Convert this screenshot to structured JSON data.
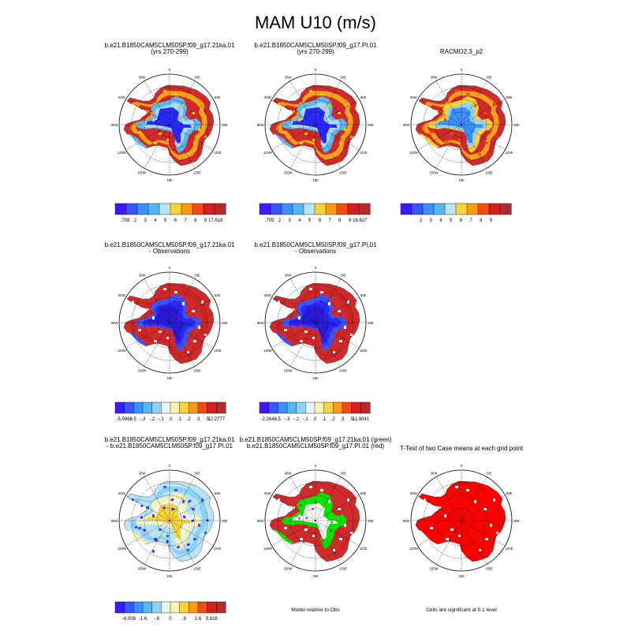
{
  "title": "MAM U10 (m/s)",
  "colors": {
    "ice_core_blue": "#2a2aff",
    "ocean_red": "#d12a2a",
    "sig_red": "#ff0000",
    "green": "#00e600"
  },
  "lon_labels": [
    "0",
    "30E",
    "60E",
    "90E",
    "120E",
    "150E",
    "180",
    "150W",
    "120W",
    "90W",
    "60W",
    "30W"
  ],
  "panels": [
    {
      "id": "p1",
      "title": [
        "b.e21.B1850CAM5CLM50SP.f09_g17.21ka.01",
        "(yrs 270-299)"
      ],
      "style": "abs",
      "footer": ""
    },
    {
      "id": "p2",
      "title": [
        "b.e21.B1850CAM5CLM50SP.f09_g17.PI.01",
        "(yrs 270-299)"
      ],
      "style": "abs",
      "footer": ""
    },
    {
      "id": "p3",
      "title": [
        "RACMO2.3_p2"
      ],
      "style": "abs_obs",
      "footer": ""
    },
    {
      "id": "p4",
      "title": [
        "b.e21.B1850CAM5CLM50SP.f09_g17.21ka.01",
        "- Observations"
      ],
      "style": "diff_obs",
      "footer": ""
    },
    {
      "id": "p5",
      "title": [
        "b.e21.B1850CAM5CLM50SP.f09_g17.PI.01",
        "- Observations"
      ],
      "style": "diff_obs",
      "footer": ""
    },
    {
      "id": "p7",
      "title": [
        "b.e21.B1850CAM5CLM50SP.f09_g17.21ka.01",
        "- b.e21.B1850CAM5CLM50SP.f09_g17.PI.01"
      ],
      "style": "diff_case",
      "footer": ""
    },
    {
      "id": "p8",
      "title": [
        "b.e21.B1850CAM5CLM50SP.f09_g17.21ka.01 (green)",
        "b.e21.B1850CAM5CLM50SP.f09_g17.PI.01 (red)"
      ],
      "style": "rel",
      "footer": "Model relative to Obs"
    },
    {
      "id": "p9",
      "title": [
        "T-Test of two Case means at each grid point"
      ],
      "style": "ttest",
      "footer": "Cells are significant at 0.1 level"
    }
  ],
  "colorbars": [
    {
      "panel": "p1",
      "colors": [
        "#3b1cff",
        "#3a55ff",
        "#3c8fff",
        "#53b7f2",
        "#b8e4f7",
        "#f9d33a",
        "#fb9b0f",
        "#f54b14",
        "#d71d1d",
        "#b52a2a"
      ],
      "labels": [
        ".708",
        "2",
        "3",
        "4",
        "5",
        "6",
        "7",
        "8",
        "9",
        "17.618"
      ]
    },
    {
      "panel": "p2",
      "colors": [
        "#3b1cff",
        "#3a55ff",
        "#3c8fff",
        "#53b7f2",
        "#b8e4f7",
        "#f9d33a",
        "#fb9b0f",
        "#f54b14",
        "#d71d1d",
        "#b52a2a"
      ],
      "labels": [
        ".705",
        "2",
        "3",
        "4",
        "5",
        "6",
        "7",
        "8",
        "9",
        "16.627"
      ]
    },
    {
      "panel": "p3",
      "colors": [
        "#3b1cff",
        "#3a55ff",
        "#3c8fff",
        "#53b7f2",
        "#b8e4f7",
        "#f9d33a",
        "#fb9b0f",
        "#f54b14",
        "#d71d1d",
        "#b52a2a"
      ],
      "labels": [
        "",
        "2",
        "3",
        "4",
        "5",
        "6",
        "7",
        "8",
        "9",
        ""
      ]
    },
    {
      "panel": "p4",
      "colors": [
        "#3b1cff",
        "#3a55ff",
        "#3c8fff",
        "#53b7f2",
        "#8fd0f5",
        "#e6f4fb",
        "#faf2b0",
        "#f9d33a",
        "#fb9b0f",
        "#f54b14",
        "#d71d1d",
        "#b52a2a"
      ],
      "labels": [
        "-5.5968",
        "-.5",
        "-.3",
        "-.2",
        "-.1",
        ".0",
        ".1",
        ".2",
        ".3",
        ".5",
        "12.2777"
      ]
    },
    {
      "panel": "p5",
      "colors": [
        "#3b1cff",
        "#3a55ff",
        "#3c8fff",
        "#53b7f2",
        "#8fd0f5",
        "#e6f4fb",
        "#faf2b0",
        "#f9d33a",
        "#fb9b0f",
        "#f54b14",
        "#d71d1d",
        "#b52a2a"
      ],
      "labels": [
        "-2.2648",
        "-.5",
        "-.3",
        "-.2",
        "-.1",
        ".0",
        ".1",
        ".2",
        ".3",
        ".5",
        "11.9041"
      ]
    },
    {
      "panel": "p7",
      "colors": [
        "#3b1cff",
        "#3a55ff",
        "#3c8fff",
        "#53b7f2",
        "#8fd0f5",
        "#e6f4fb",
        "#faf2b0",
        "#f9d33a",
        "#fb9b0f",
        "#f54b14",
        "#d71d1d",
        "#b52a2a"
      ],
      "labels": [
        "-6.008",
        "-1.6",
        "-.8",
        "0",
        ".8",
        "1.6",
        "5.816"
      ]
    }
  ],
  "chart_data": {
    "type": "heatmap",
    "title": "MAM U10 (m/s)",
    "variable": "U10",
    "season": "MAM",
    "units": "m/s",
    "projection": "south polar stereographic",
    "grid": true,
    "panels": [
      {
        "title": "b.e21.B1850CAM5CLM50SP.f09_g17.21ka.01 (yrs 270-299)",
        "contour_levels": [
          0.708,
          2,
          3,
          4,
          5,
          6,
          7,
          8,
          9,
          17.618
        ]
      },
      {
        "title": "b.e21.B1850CAM5CLM50SP.f09_g17.PI.01 (yrs 270-299)",
        "contour_levels": [
          0.705,
          2,
          3,
          4,
          5,
          6,
          7,
          8,
          9,
          16.627
        ]
      },
      {
        "title": "RACMO2.3_p2",
        "contour_levels": [
          2,
          3,
          4,
          5,
          6,
          7,
          8,
          9
        ]
      },
      {
        "title": "b.e21.B1850CAM5CLM50SP.f09_g17.21ka.01 - Observations",
        "contour_levels": [
          -5.5968,
          -0.5,
          -0.3,
          -0.2,
          -0.1,
          0.0,
          0.1,
          0.2,
          0.3,
          0.5,
          12.2777
        ]
      },
      {
        "title": "b.e21.B1850CAM5CLM50SP.f09_g17.PI.01 - Observations",
        "contour_levels": [
          -2.2648,
          -0.5,
          -0.3,
          -0.2,
          -0.1,
          0.0,
          0.1,
          0.2,
          0.3,
          0.5,
          11.9041
        ]
      },
      {
        "title": "b.e21.B1850CAM5CLM50SP.f09_g17.21ka.01 - b.e21.B1850CAM5CLM50SP.f09_g17.PI.01",
        "contour_levels": [
          -6.008,
          -1.6,
          -0.8,
          0,
          0.8,
          1.6,
          5.816
        ]
      },
      {
        "title": "Model relative to Obs",
        "legend": [
          "b.e21.B1850CAM5CLM50SP.f09_g17.21ka.01 (green)",
          "b.e21.B1850CAM5CLM50SP.f09_g17.PI.01 (red)"
        ]
      },
      {
        "title": "T-Test of two Case means at each grid point",
        "note": "Cells are significant at 0.1 level"
      }
    ]
  }
}
